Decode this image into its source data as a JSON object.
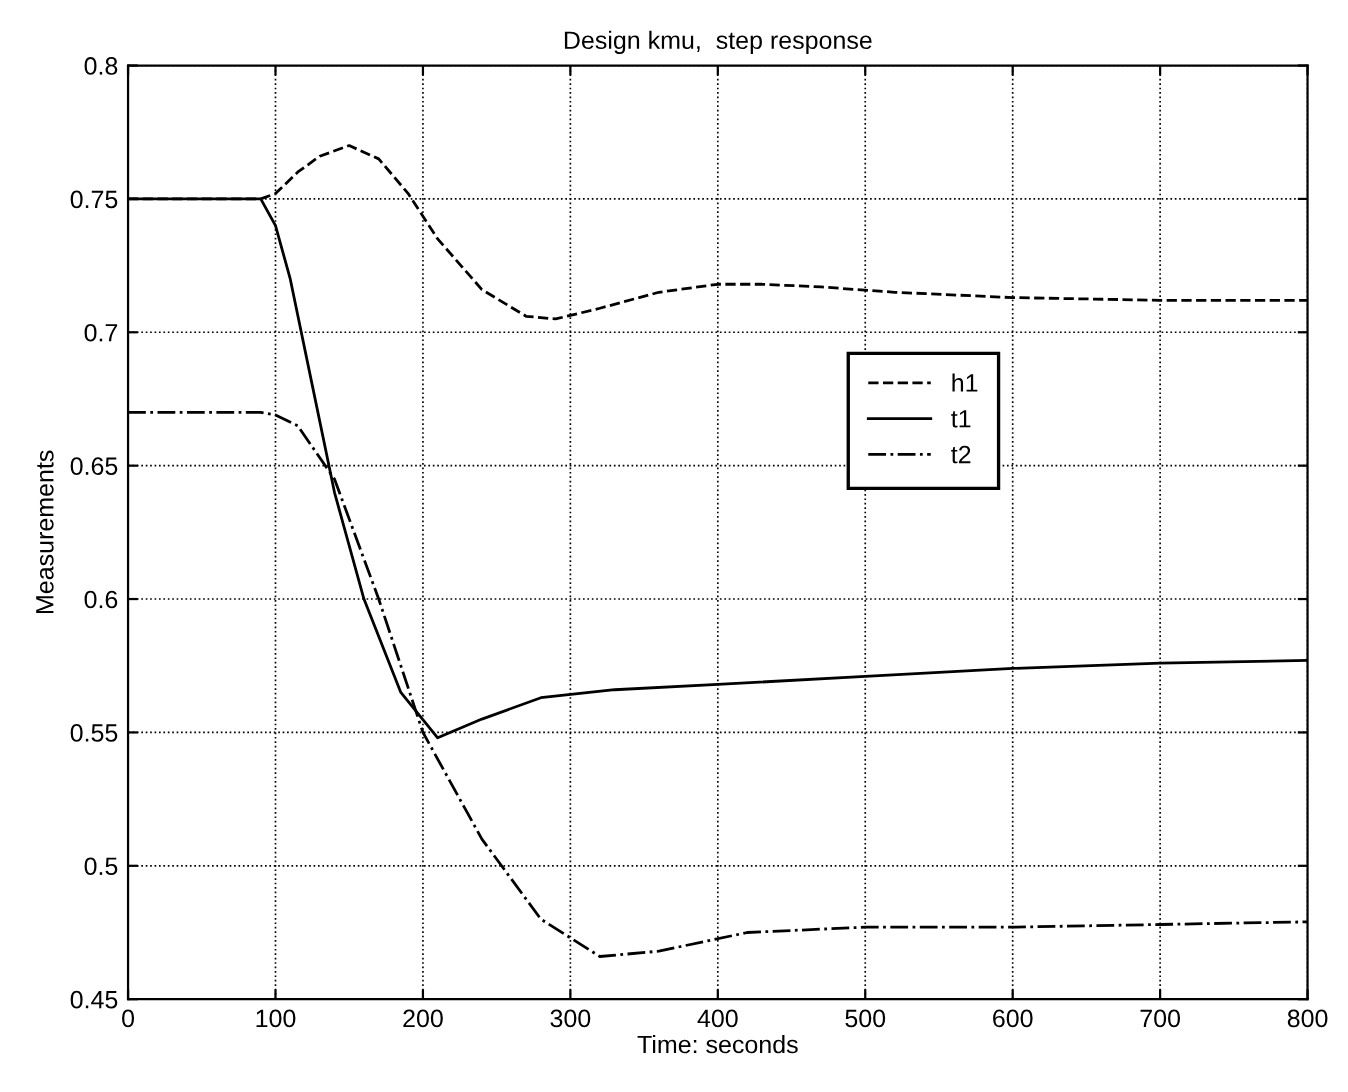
{
  "chart_data": {
    "type": "line",
    "title": "Design kmu,  step response",
    "xlabel": "Time: seconds",
    "ylabel": "Measurements",
    "xlim": [
      0,
      800
    ],
    "ylim": [
      0.45,
      0.8
    ],
    "xticks": [
      0,
      100,
      200,
      300,
      400,
      500,
      600,
      700,
      800
    ],
    "yticks": [
      0.45,
      0.5,
      0.55,
      0.6,
      0.65,
      0.7,
      0.75,
      0.8
    ],
    "grid": true,
    "legend": "right",
    "marker": "none",
    "series": [
      {
        "name": "h1",
        "color": "#000000",
        "line_style": "dashed",
        "x": [
          0,
          90,
          100,
          115,
          130,
          150,
          170,
          190,
          210,
          240,
          270,
          290,
          320,
          360,
          400,
          430,
          470,
          520,
          600,
          700,
          800
        ],
        "values": [
          0.75,
          0.75,
          0.752,
          0.76,
          0.766,
          0.77,
          0.765,
          0.752,
          0.735,
          0.716,
          0.706,
          0.705,
          0.709,
          0.715,
          0.718,
          0.718,
          0.717,
          0.715,
          0.713,
          0.712,
          0.712
        ]
      },
      {
        "name": "t1",
        "color": "#000000",
        "line_style": "solid",
        "x": [
          0,
          90,
          100,
          110,
          125,
          140,
          160,
          185,
          210,
          240,
          280,
          330,
          400,
          500,
          600,
          700,
          800
        ],
        "values": [
          0.75,
          0.75,
          0.74,
          0.72,
          0.68,
          0.64,
          0.6,
          0.565,
          0.548,
          0.555,
          0.563,
          0.566,
          0.568,
          0.571,
          0.574,
          0.576,
          0.577
        ]
      },
      {
        "name": "t2",
        "color": "#000000",
        "line_style": "dashdot",
        "x": [
          0,
          90,
          100,
          115,
          140,
          170,
          200,
          240,
          280,
          320,
          360,
          420,
          500,
          600,
          700,
          800
        ],
        "values": [
          0.67,
          0.67,
          0.669,
          0.665,
          0.645,
          0.6,
          0.55,
          0.51,
          0.48,
          0.466,
          0.468,
          0.475,
          0.477,
          0.477,
          0.478,
          0.479
        ]
      }
    ]
  }
}
